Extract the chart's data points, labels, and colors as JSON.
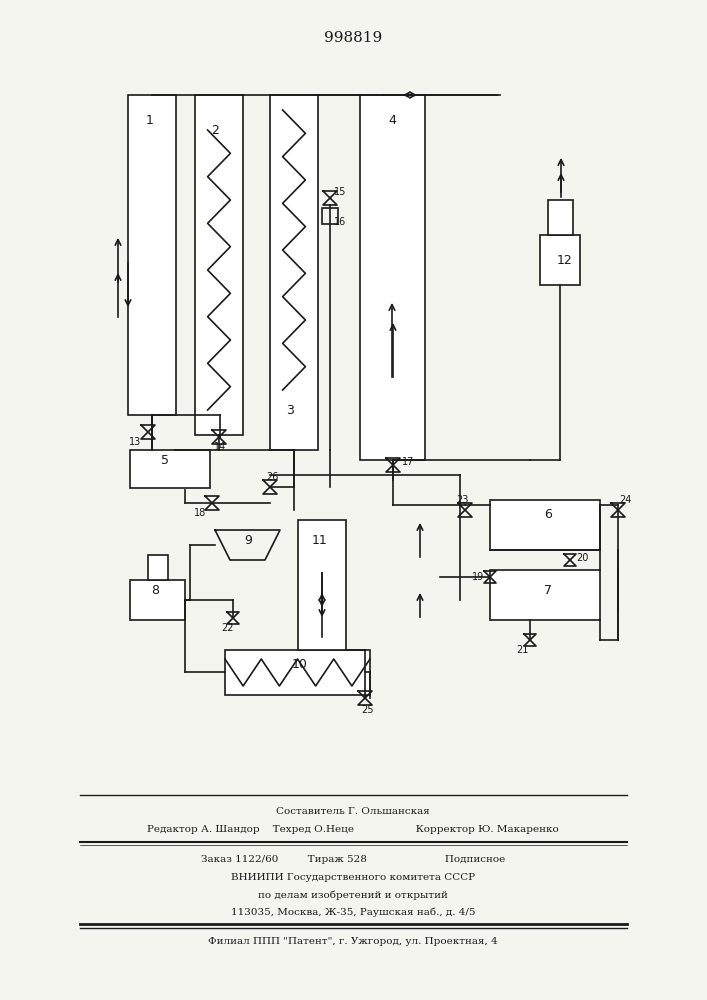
{
  "title": "998819",
  "bg_color": "#f5f5f0",
  "line_color": "#1a1a1a",
  "footer_lines": [
    "Составитель Г. Ольшанская",
    "Редактор А. Шандор    Техред О.Неце                   Корректор Ю. Макаренко",
    "Заказ 1122/60         Тираж 528                        Подписное",
    "ВНИИПИ Государственного комитета СССР",
    "по делам изобретений и открытий",
    "113035, Москва, Ж-35, Раушская наб., д. 4/5",
    "Филиал ППП \"Патент\", г. Ужгород, ул. Проектная, 4"
  ]
}
